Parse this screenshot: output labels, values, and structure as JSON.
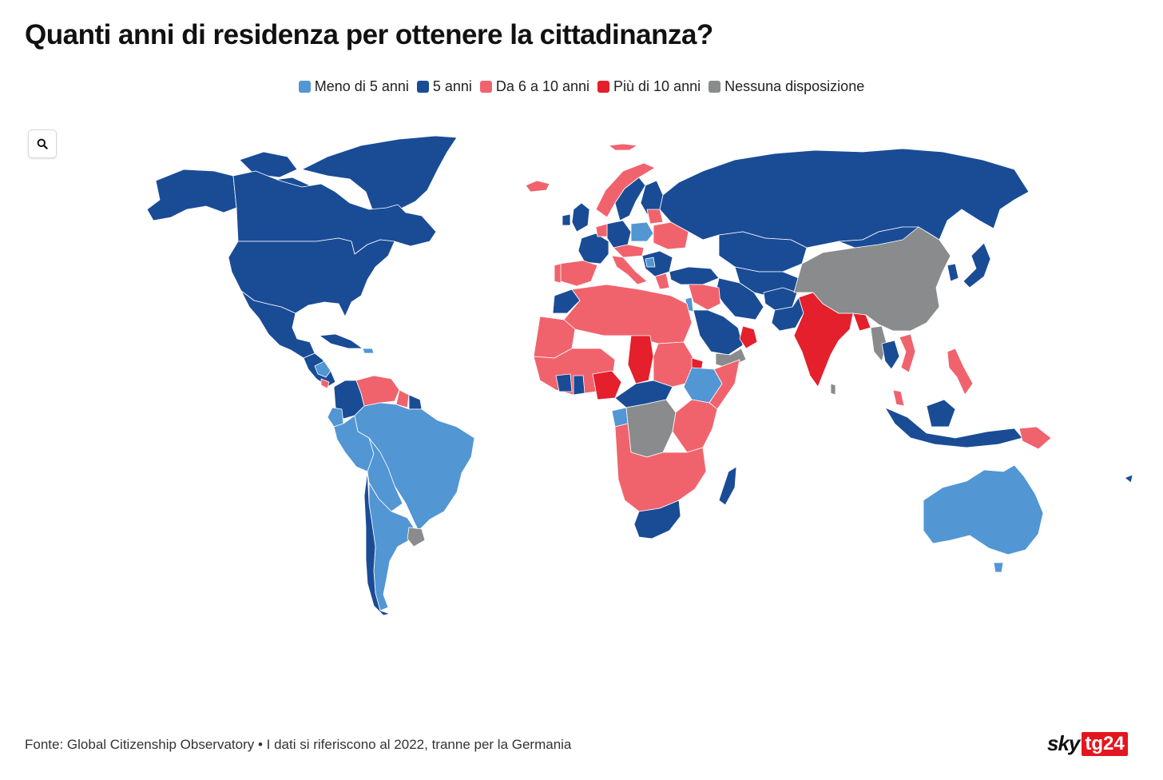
{
  "title": "Quanti anni di residenza per ottenere la cittadinanza?",
  "legend": [
    {
      "label": "Meno di 5 anni",
      "color": "#5296d4"
    },
    {
      "label": "5 anni",
      "color": "#1a4c96"
    },
    {
      "label": "Da 6 a 10 anni",
      "color": "#f0636d"
    },
    {
      "label": "Più di 10 anni",
      "color": "#e3202b"
    },
    {
      "label": "Nessuna disposizione",
      "color": "#8a8b8d"
    }
  ],
  "zoom_button": {
    "icon": "magnifier-icon"
  },
  "colors": {
    "under_5": "#5296d4",
    "five": "#1a4c96",
    "six_to_ten": "#f0636d",
    "over_ten": "#e3202b",
    "none": "#8a8b8d"
  },
  "footer": {
    "source": "Fonte: Global Citizenship Observatory • I dati si riferiscono al 2022, tranne per la Germania"
  },
  "logo": {
    "sky": "sky",
    "tg": "tg24"
  }
}
